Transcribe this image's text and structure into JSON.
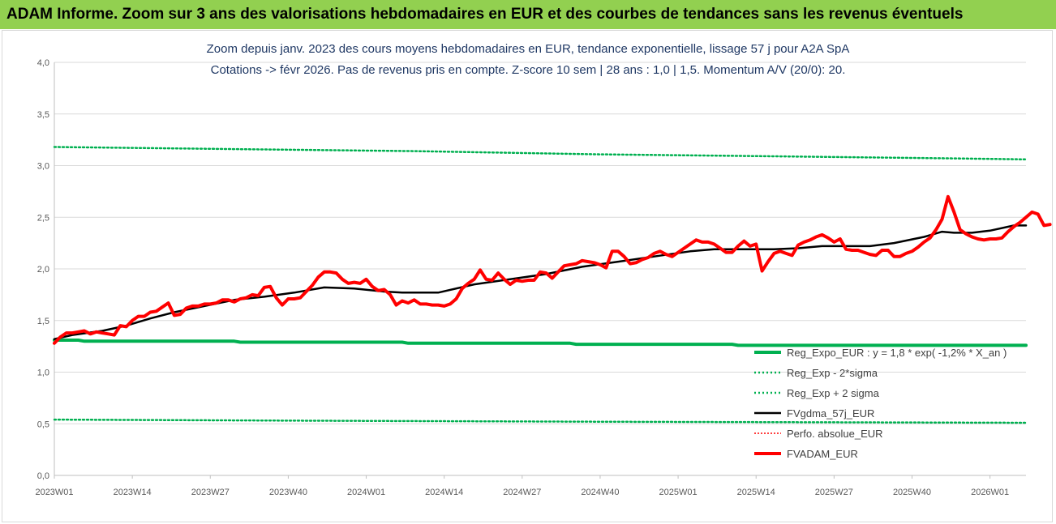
{
  "banner": {
    "title": "ADAM Informe. Zoom sur 3 ans des valorisations hebdomadaires en EUR et des courbes de tendances sans les revenus éventuels"
  },
  "chart_data": {
    "type": "line",
    "title_line1": "Zoom depuis janv. 2023 des cours moyens hebdomadaires en EUR, tendance exponentielle, lissage 57 j pour A2A SpA",
    "title_line2": "Cotations -> févr 2026. Pas de revenus pris en compte. Z-score 10 sem | 28 ans : 1,0 | 1,5. Momentum A/V (20/0): 20.",
    "ylim": [
      0,
      4
    ],
    "y_ticks": [
      "0,0",
      "0,5",
      "1,0",
      "1,5",
      "2,0",
      "2,5",
      "3,0",
      "3,5",
      "4,0"
    ],
    "x_range_weeks": [
      0,
      162
    ],
    "x_ticks": [
      {
        "label": "2023W01",
        "week": 0
      },
      {
        "label": "2023W14",
        "week": 13
      },
      {
        "label": "2023W27",
        "week": 26
      },
      {
        "label": "2023W40",
        "week": 39
      },
      {
        "label": "2024W01",
        "week": 52
      },
      {
        "label": "2024W14",
        "week": 65
      },
      {
        "label": "2024W27",
        "week": 78
      },
      {
        "label": "2024W40",
        "week": 91
      },
      {
        "label": "2025W01",
        "week": 104
      },
      {
        "label": "2025W14",
        "week": 117
      },
      {
        "label": "2025W27",
        "week": 130
      },
      {
        "label": "2025W40",
        "week": 143
      },
      {
        "label": "2026W01",
        "week": 156
      }
    ],
    "series": [
      {
        "name": "Reg_Expo_EUR : y = 1,8 * exp( -1,2% *  X_an )",
        "color": "#00b050",
        "style": "solid-thick",
        "points": [
          [
            0,
            1.31
          ],
          [
            4,
            1.31
          ],
          [
            5,
            1.3
          ],
          [
            30,
            1.3
          ],
          [
            31,
            1.29
          ],
          [
            58,
            1.29
          ],
          [
            59,
            1.28
          ],
          [
            86,
            1.28
          ],
          [
            87,
            1.27
          ],
          [
            113,
            1.27
          ],
          [
            114,
            1.26
          ],
          [
            162,
            1.26
          ]
        ]
      },
      {
        "name": "Reg_Exp - 2*sigma",
        "color": "#00b050",
        "style": "dotted",
        "points": [
          [
            0,
            0.54
          ],
          [
            40,
            0.53
          ],
          [
            90,
            0.52
          ],
          [
            162,
            0.51
          ]
        ]
      },
      {
        "name": "Reg_Exp + 2 sigma",
        "color": "#00b050",
        "style": "dotted",
        "points": [
          [
            0,
            3.18
          ],
          [
            30,
            3.16
          ],
          [
            60,
            3.14
          ],
          [
            90,
            3.11
          ],
          [
            120,
            3.09
          ],
          [
            150,
            3.07
          ],
          [
            162,
            3.06
          ]
        ]
      },
      {
        "name": "FVgdma_57j_EUR",
        "color": "#000000",
        "style": "solid",
        "points": [
          [
            0,
            1.32
          ],
          [
            3,
            1.36
          ],
          [
            8,
            1.4
          ],
          [
            12,
            1.45
          ],
          [
            16,
            1.52
          ],
          [
            20,
            1.58
          ],
          [
            25,
            1.64
          ],
          [
            30,
            1.7
          ],
          [
            35,
            1.73
          ],
          [
            40,
            1.77
          ],
          [
            45,
            1.82
          ],
          [
            50,
            1.81
          ],
          [
            55,
            1.78
          ],
          [
            58,
            1.77
          ],
          [
            64,
            1.77
          ],
          [
            70,
            1.85
          ],
          [
            76,
            1.9
          ],
          [
            82,
            1.95
          ],
          [
            88,
            2.02
          ],
          [
            94,
            2.07
          ],
          [
            100,
            2.12
          ],
          [
            106,
            2.17
          ],
          [
            110,
            2.19
          ],
          [
            116,
            2.19
          ],
          [
            120,
            2.19
          ],
          [
            124,
            2.2
          ],
          [
            128,
            2.22
          ],
          [
            132,
            2.22
          ],
          [
            136,
            2.22
          ],
          [
            140,
            2.25
          ],
          [
            145,
            2.31
          ],
          [
            148,
            2.36
          ],
          [
            150,
            2.35
          ],
          [
            153,
            2.35
          ],
          [
            156,
            2.37
          ],
          [
            160,
            2.42
          ],
          [
            162,
            2.42
          ]
        ]
      },
      {
        "name": "Perfo. absolue_EUR",
        "color": "#ff0000",
        "style": "dotted-thin",
        "points": []
      },
      {
        "name": "FVADAM_EUR",
        "color": "#ff0000",
        "style": "solid-thick",
        "points": [
          [
            0,
            1.28
          ],
          [
            1,
            1.34
          ],
          [
            2,
            1.38
          ],
          [
            3,
            1.38
          ],
          [
            4,
            1.39
          ],
          [
            5,
            1.4
          ],
          [
            6,
            1.37
          ],
          [
            7,
            1.39
          ],
          [
            8,
            1.38
          ],
          [
            9,
            1.37
          ],
          [
            10,
            1.36
          ],
          [
            11,
            1.45
          ],
          [
            12,
            1.44
          ],
          [
            13,
            1.5
          ],
          [
            14,
            1.54
          ],
          [
            15,
            1.54
          ],
          [
            16,
            1.58
          ],
          [
            17,
            1.59
          ],
          [
            18,
            1.63
          ],
          [
            19,
            1.67
          ],
          [
            20,
            1.55
          ],
          [
            21,
            1.56
          ],
          [
            22,
            1.62
          ],
          [
            23,
            1.64
          ],
          [
            24,
            1.64
          ],
          [
            25,
            1.66
          ],
          [
            26,
            1.66
          ],
          [
            27,
            1.67
          ],
          [
            28,
            1.7
          ],
          [
            29,
            1.7
          ],
          [
            30,
            1.68
          ],
          [
            31,
            1.71
          ],
          [
            32,
            1.72
          ],
          [
            33,
            1.75
          ],
          [
            34,
            1.74
          ],
          [
            35,
            1.82
          ],
          [
            36,
            1.83
          ],
          [
            37,
            1.72
          ],
          [
            38,
            1.65
          ],
          [
            39,
            1.71
          ],
          [
            40,
            1.71
          ],
          [
            41,
            1.72
          ],
          [
            42,
            1.78
          ],
          [
            43,
            1.84
          ],
          [
            44,
            1.92
          ],
          [
            45,
            1.97
          ],
          [
            46,
            1.97
          ],
          [
            47,
            1.96
          ],
          [
            48,
            1.9
          ],
          [
            49,
            1.86
          ],
          [
            50,
            1.87
          ],
          [
            51,
            1.86
          ],
          [
            52,
            1.9
          ],
          [
            53,
            1.83
          ],
          [
            54,
            1.79
          ],
          [
            55,
            1.8
          ],
          [
            56,
            1.75
          ],
          [
            57,
            1.65
          ],
          [
            58,
            1.69
          ],
          [
            59,
            1.67
          ],
          [
            60,
            1.7
          ],
          [
            61,
            1.66
          ],
          [
            62,
            1.66
          ],
          [
            63,
            1.65
          ],
          [
            64,
            1.65
          ],
          [
            65,
            1.64
          ],
          [
            66,
            1.66
          ],
          [
            67,
            1.71
          ],
          [
            68,
            1.81
          ],
          [
            69,
            1.86
          ],
          [
            70,
            1.9
          ],
          [
            71,
            1.99
          ],
          [
            72,
            1.9
          ],
          [
            73,
            1.89
          ],
          [
            74,
            1.96
          ],
          [
            75,
            1.9
          ],
          [
            76,
            1.85
          ],
          [
            77,
            1.89
          ],
          [
            78,
            1.88
          ],
          [
            79,
            1.89
          ],
          [
            80,
            1.89
          ],
          [
            81,
            1.97
          ],
          [
            82,
            1.96
          ],
          [
            83,
            1.91
          ],
          [
            84,
            1.97
          ],
          [
            85,
            2.03
          ],
          [
            86,
            2.04
          ],
          [
            87,
            2.05
          ],
          [
            88,
            2.08
          ],
          [
            89,
            2.07
          ],
          [
            90,
            2.06
          ],
          [
            91,
            2.04
          ],
          [
            92,
            2.01
          ],
          [
            93,
            2.17
          ],
          [
            94,
            2.17
          ],
          [
            95,
            2.12
          ],
          [
            96,
            2.05
          ],
          [
            97,
            2.06
          ],
          [
            98,
            2.09
          ],
          [
            99,
            2.11
          ],
          [
            100,
            2.15
          ],
          [
            101,
            2.17
          ],
          [
            102,
            2.14
          ],
          [
            103,
            2.12
          ],
          [
            104,
            2.16
          ],
          [
            105,
            2.2
          ],
          [
            106,
            2.24
          ],
          [
            107,
            2.28
          ],
          [
            108,
            2.26
          ],
          [
            109,
            2.26
          ],
          [
            110,
            2.24
          ],
          [
            111,
            2.2
          ],
          [
            112,
            2.16
          ],
          [
            113,
            2.16
          ],
          [
            114,
            2.22
          ],
          [
            115,
            2.27
          ],
          [
            116,
            2.22
          ],
          [
            117,
            2.24
          ],
          [
            118,
            1.98
          ],
          [
            119,
            2.07
          ],
          [
            120,
            2.15
          ],
          [
            121,
            2.17
          ],
          [
            122,
            2.15
          ],
          [
            123,
            2.13
          ],
          [
            124,
            2.23
          ],
          [
            125,
            2.26
          ],
          [
            126,
            2.28
          ],
          [
            127,
            2.31
          ],
          [
            128,
            2.33
          ],
          [
            129,
            2.3
          ],
          [
            130,
            2.26
          ],
          [
            131,
            2.29
          ],
          [
            132,
            2.19
          ],
          [
            133,
            2.18
          ],
          [
            134,
            2.18
          ],
          [
            135,
            2.16
          ],
          [
            136,
            2.14
          ],
          [
            137,
            2.13
          ],
          [
            138,
            2.18
          ],
          [
            139,
            2.18
          ],
          [
            140,
            2.12
          ],
          [
            141,
            2.12
          ],
          [
            142,
            2.15
          ],
          [
            143,
            2.17
          ],
          [
            144,
            2.21
          ],
          [
            145,
            2.26
          ],
          [
            146,
            2.3
          ],
          [
            147,
            2.38
          ],
          [
            148,
            2.48
          ],
          [
            149,
            2.7
          ],
          [
            150,
            2.55
          ],
          [
            151,
            2.38
          ],
          [
            152,
            2.34
          ],
          [
            153,
            2.31
          ],
          [
            154,
            2.29
          ],
          [
            155,
            2.28
          ],
          [
            156,
            2.29
          ],
          [
            157,
            2.29
          ],
          [
            158,
            2.3
          ],
          [
            159,
            2.36
          ],
          [
            160,
            2.41
          ],
          [
            161,
            2.45
          ],
          [
            162,
            2.5
          ],
          [
            163,
            2.55
          ],
          [
            164,
            2.53
          ],
          [
            165,
            2.42
          ],
          [
            166,
            2.43
          ]
        ]
      }
    ],
    "legend_position": "bottom-right"
  }
}
